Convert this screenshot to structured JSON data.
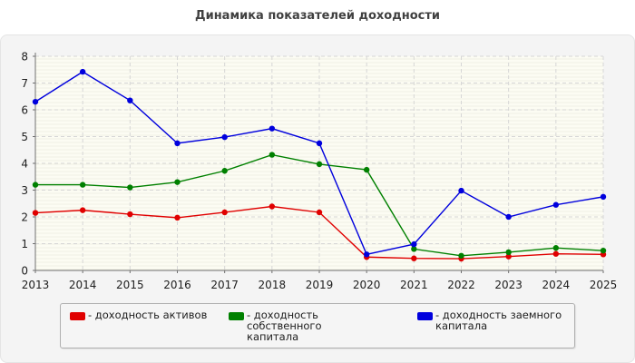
{
  "chart_data": {
    "type": "line",
    "title": "Динамика показателей доходности",
    "xlabel": "",
    "ylabel": "",
    "x": [
      "2013",
      "2014",
      "2015",
      "2016",
      "2017",
      "2018",
      "2019",
      "2020",
      "2021",
      "2022",
      "2023",
      "2024",
      "2025"
    ],
    "ylim": [
      0,
      8
    ],
    "yticks": [
      "0",
      "1",
      "2",
      "3",
      "4",
      "5",
      "6",
      "7",
      "8"
    ],
    "grid": true,
    "legend_position": "bottom",
    "series": [
      {
        "name": "- доходность активов",
        "color": "#e00000",
        "values": [
          2.15,
          2.25,
          2.1,
          1.97,
          2.17,
          2.39,
          2.17,
          0.5,
          0.45,
          0.44,
          0.52,
          0.62,
          0.6
        ]
      },
      {
        "name": "- доходность собственного капитала",
        "color": "#008000",
        "values": [
          3.2,
          3.2,
          3.1,
          3.3,
          3.72,
          4.32,
          3.97,
          3.76,
          0.8,
          0.55,
          0.68,
          0.84,
          0.74
        ]
      },
      {
        "name": "- доходность заемного капитала",
        "color": "#0000dd",
        "values": [
          6.3,
          7.42,
          6.35,
          4.75,
          4.98,
          5.3,
          4.75,
          0.6,
          0.98,
          2.98,
          2.0,
          2.45,
          2.75
        ]
      }
    ]
  }
}
